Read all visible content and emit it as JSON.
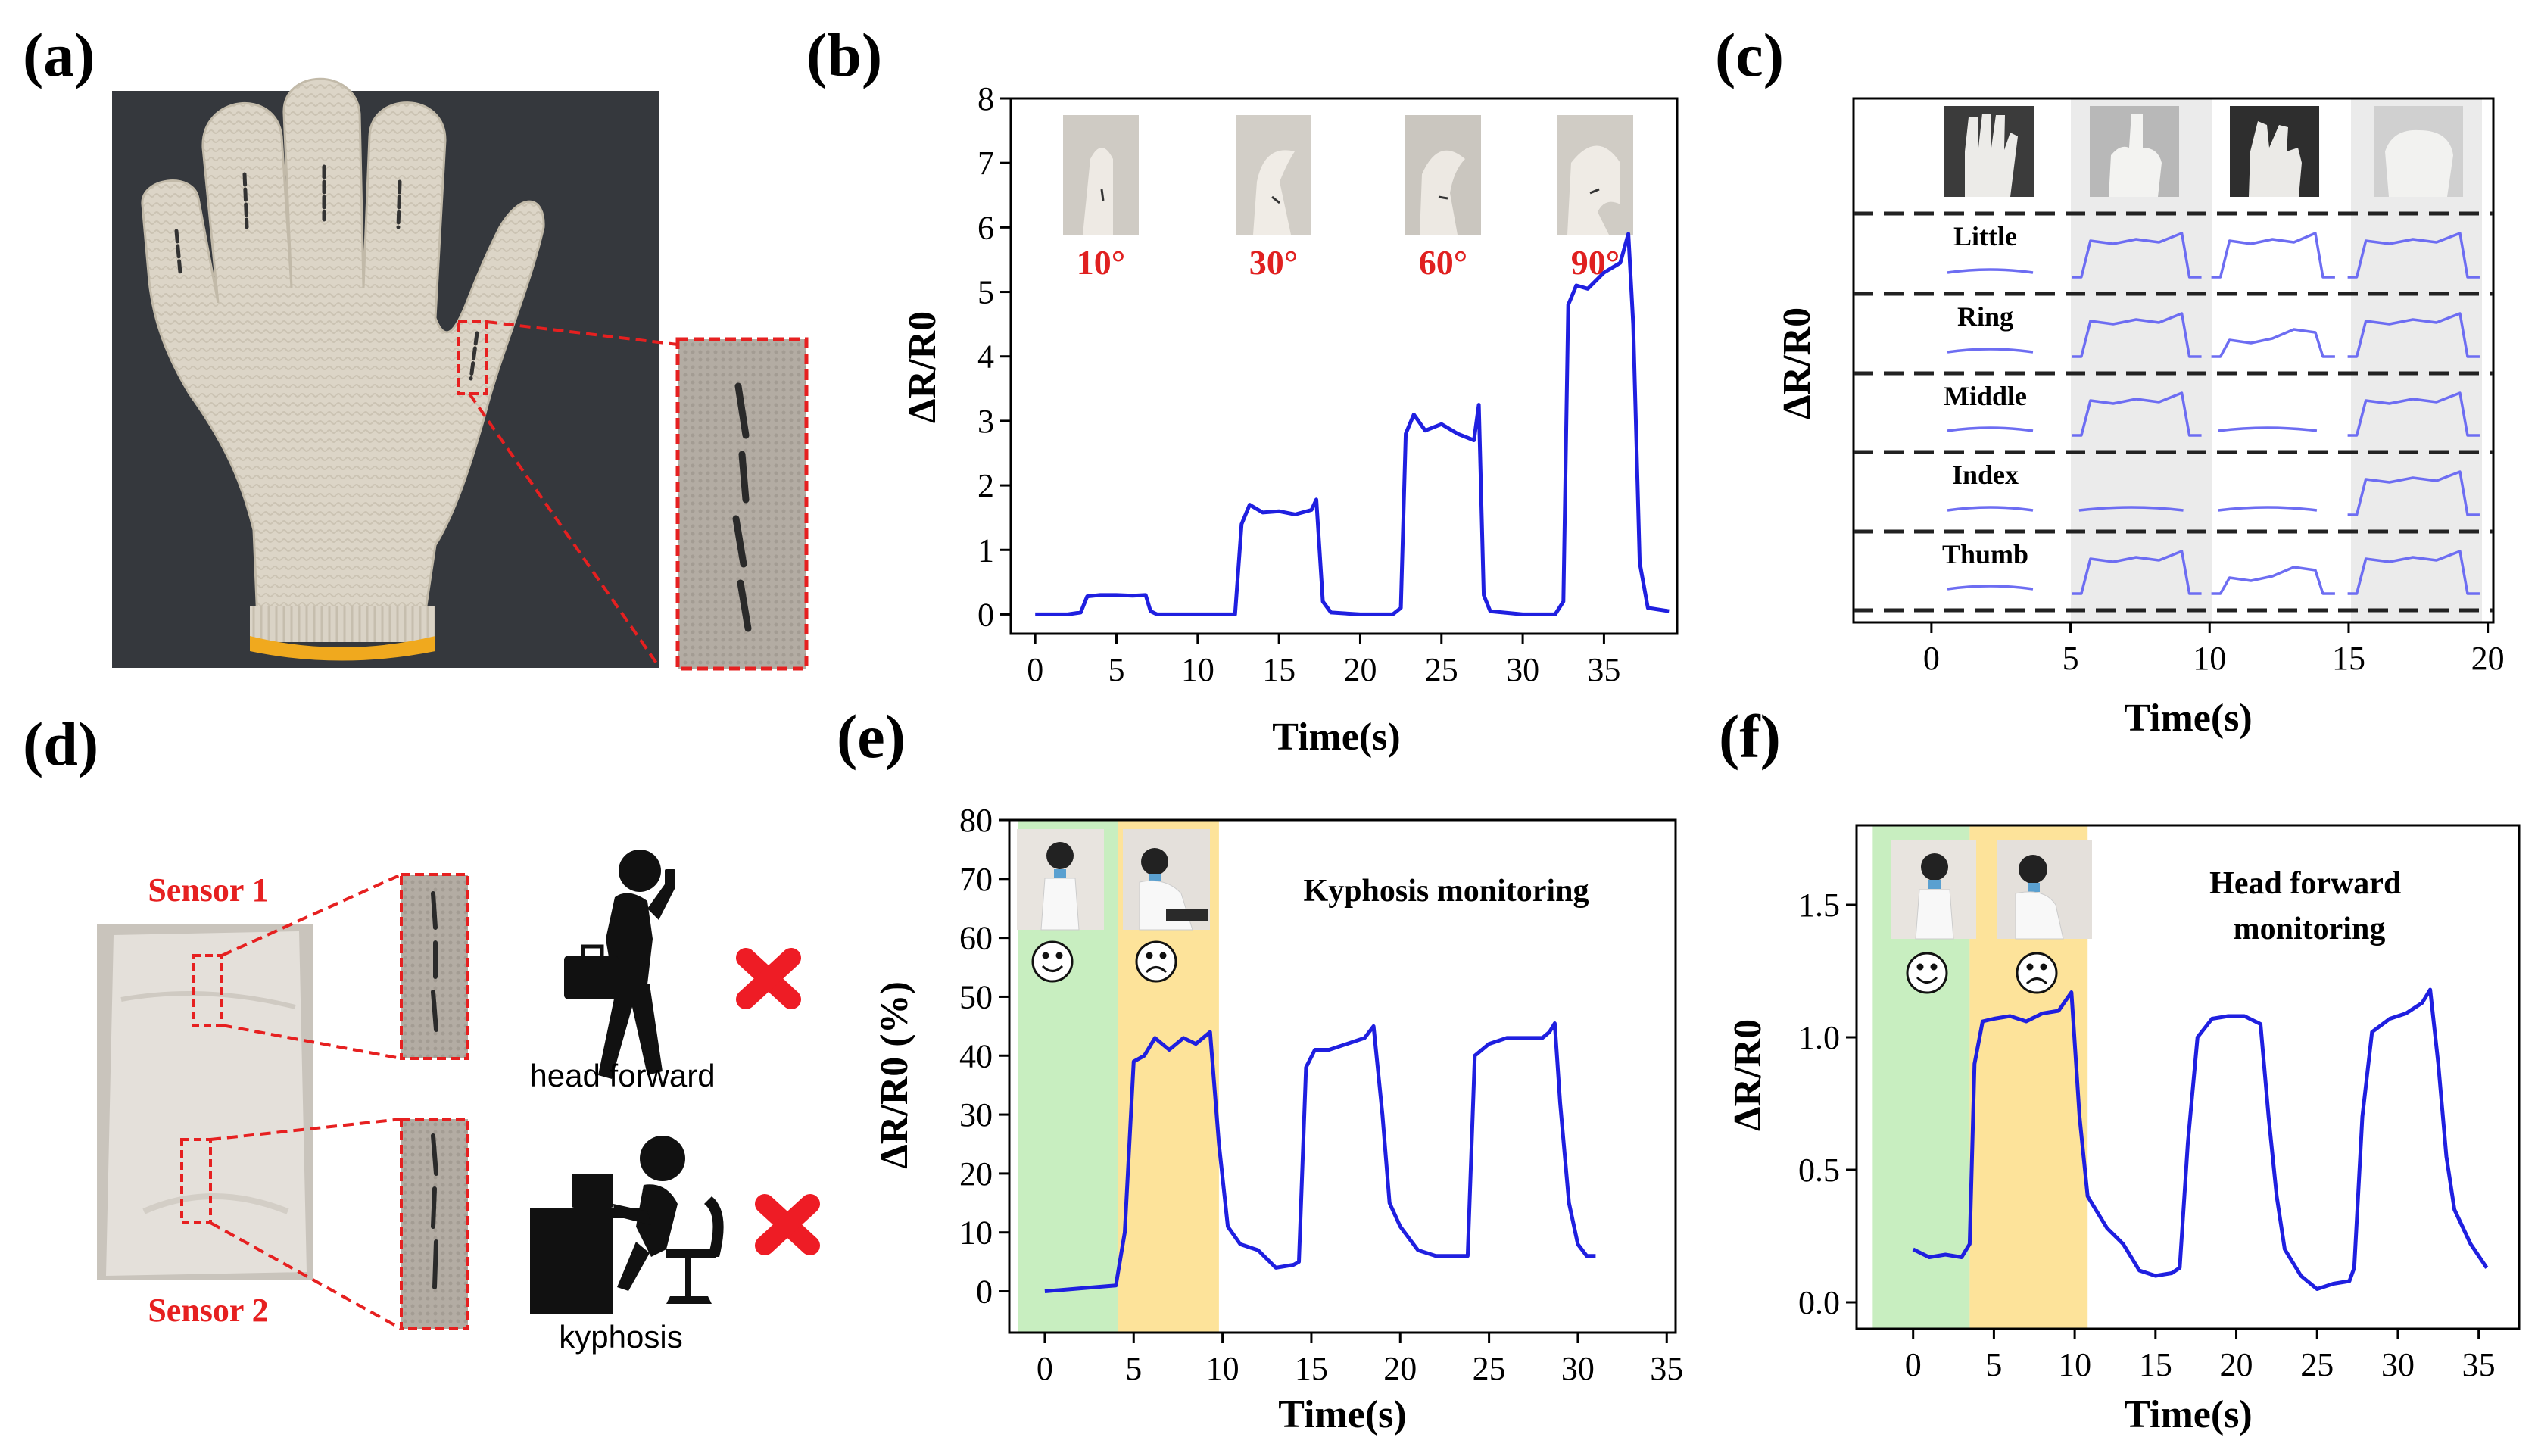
{
  "panels": {
    "a": {
      "label": "(a)"
    },
    "b": {
      "label": "(b)"
    },
    "c": {
      "label": "(c)"
    },
    "d": {
      "label": "(d)",
      "sensor1": "Sensor 1",
      "sensor2": "Sensor 2",
      "posture1": "head forward",
      "posture2": "kyphosis"
    },
    "e": {
      "label": "(e)"
    },
    "f": {
      "label": "(f)"
    }
  },
  "colors": {
    "curve": "#1f1fe0",
    "annot": "#e02020",
    "good": "#c8eec0",
    "bad": "#fde39a",
    "cross": "#ee1c25"
  },
  "chart_data": [
    {
      "id": "b",
      "type": "line",
      "xlabel": "Time(s)",
      "ylabel": "ΔR/R0",
      "xlim": [
        -1.5,
        39.5
      ],
      "ylim": [
        -0.3,
        8
      ],
      "xticks": [
        0,
        5,
        10,
        15,
        20,
        25,
        30,
        35
      ],
      "yticks": [
        0,
        1,
        2,
        3,
        4,
        5,
        6,
        7,
        8
      ],
      "annotations": [
        "10°",
        "30°",
        "60°",
        "90°"
      ],
      "points": [
        [
          0,
          0
        ],
        [
          1,
          0
        ],
        [
          2,
          0
        ],
        [
          2.8,
          0.03
        ],
        [
          3.2,
          0.28
        ],
        [
          4,
          0.3
        ],
        [
          5,
          0.3
        ],
        [
          6,
          0.29
        ],
        [
          6.8,
          0.3
        ],
        [
          7.1,
          0.05
        ],
        [
          7.5,
          0
        ],
        [
          9,
          0
        ],
        [
          11,
          0
        ],
        [
          12.3,
          0
        ],
        [
          12.7,
          1.4
        ],
        [
          13.2,
          1.7
        ],
        [
          14,
          1.58
        ],
        [
          15,
          1.6
        ],
        [
          16,
          1.55
        ],
        [
          17,
          1.62
        ],
        [
          17.3,
          1.78
        ],
        [
          17.7,
          0.2
        ],
        [
          18.2,
          0.03
        ],
        [
          20,
          0
        ],
        [
          22,
          0
        ],
        [
          22.5,
          0.1
        ],
        [
          22.8,
          2.8
        ],
        [
          23.3,
          3.1
        ],
        [
          24,
          2.85
        ],
        [
          25,
          2.95
        ],
        [
          26,
          2.8
        ],
        [
          27,
          2.7
        ],
        [
          27.3,
          3.25
        ],
        [
          27.6,
          0.3
        ],
        [
          28,
          0.05
        ],
        [
          30,
          0
        ],
        [
          32,
          0
        ],
        [
          32.5,
          0.2
        ],
        [
          32.8,
          4.8
        ],
        [
          33.3,
          5.1
        ],
        [
          34,
          5.05
        ],
        [
          35,
          5.3
        ],
        [
          36,
          5.45
        ],
        [
          36.5,
          5.9
        ],
        [
          36.8,
          4.5
        ],
        [
          37.2,
          0.8
        ],
        [
          37.7,
          0.1
        ],
        [
          39,
          0.05
        ]
      ]
    },
    {
      "id": "c",
      "type": "line",
      "xlabel": "Time(s)",
      "ylabel": "ΔR/R0",
      "xlim": [
        -2.8,
        20.2
      ],
      "xticks": [
        0,
        5,
        10,
        15,
        20
      ],
      "channels": [
        "Little",
        "Ring",
        "Middle",
        "Index",
        "Thumb"
      ],
      "segments": [
        {
          "t": [
            -1.6,
            4.6
          ],
          "states": [
            "low",
            "low",
            "low",
            "low",
            "low"
          ]
        },
        {
          "t": [
            4.9,
            9.6
          ],
          "states": [
            "high",
            "high",
            "high",
            "low",
            "high"
          ]
        },
        {
          "t": [
            9.9,
            14.4
          ],
          "states": [
            "high",
            "mid",
            "low",
            "low",
            "mid"
          ]
        },
        {
          "t": [
            14.8,
            19.6
          ],
          "states": [
            "high",
            "high",
            "high",
            "high",
            "high"
          ]
        }
      ]
    },
    {
      "id": "e",
      "type": "line",
      "title": "Kyphosis monitoring",
      "xlabel": "Time(s)",
      "ylabel": "ΔR/R0 (%)",
      "xlim": [
        -2,
        35.5
      ],
      "ylim": [
        -7,
        80
      ],
      "xticks": [
        0,
        5,
        10,
        15,
        20,
        25,
        30,
        35
      ],
      "yticks": [
        0,
        10,
        20,
        30,
        40,
        50,
        60,
        70,
        80
      ],
      "regions": [
        {
          "from": -1.5,
          "to": 4.1,
          "state": "good"
        },
        {
          "from": 4.1,
          "to": 9.8,
          "state": "bad"
        }
      ],
      "points": [
        [
          0,
          0
        ],
        [
          2,
          0.5
        ],
        [
          4,
          1
        ],
        [
          4.5,
          10
        ],
        [
          5,
          39
        ],
        [
          5.6,
          40
        ],
        [
          6.2,
          43
        ],
        [
          7,
          41
        ],
        [
          7.8,
          43
        ],
        [
          8.5,
          42
        ],
        [
          9.3,
          44
        ],
        [
          9.8,
          25
        ],
        [
          10.3,
          11
        ],
        [
          11,
          8
        ],
        [
          12,
          7
        ],
        [
          13,
          4
        ],
        [
          14,
          4.5
        ],
        [
          14.3,
          5
        ],
        [
          14.7,
          38
        ],
        [
          15.2,
          41
        ],
        [
          16,
          41
        ],
        [
          17,
          42
        ],
        [
          18,
          43
        ],
        [
          18.5,
          45
        ],
        [
          19,
          30
        ],
        [
          19.4,
          15
        ],
        [
          20,
          11
        ],
        [
          21,
          7
        ],
        [
          22,
          6
        ],
        [
          23,
          6
        ],
        [
          23.8,
          6
        ],
        [
          24.2,
          40
        ],
        [
          25,
          42
        ],
        [
          26,
          43
        ],
        [
          27,
          43
        ],
        [
          28,
          43
        ],
        [
          28.4,
          44
        ],
        [
          28.7,
          45.5
        ],
        [
          29,
          32
        ],
        [
          29.5,
          15
        ],
        [
          30,
          8
        ],
        [
          30.5,
          6
        ],
        [
          31,
          6
        ]
      ]
    },
    {
      "id": "f",
      "type": "line",
      "title": "Head forward monitoring",
      "xlabel": "Time(s)",
      "ylabel": "ΔR/R0",
      "xlim": [
        -3.5,
        37.5
      ],
      "ylim": [
        -0.1,
        1.8
      ],
      "xticks": [
        0,
        5,
        10,
        15,
        20,
        25,
        30,
        35
      ],
      "yticks": [
        0.0,
        0.5,
        1.0,
        1.5
      ],
      "regions": [
        {
          "from": -2.5,
          "to": 3.5,
          "state": "good"
        },
        {
          "from": 3.5,
          "to": 10.8,
          "state": "bad"
        }
      ],
      "points": [
        [
          0,
          0.2
        ],
        [
          1,
          0.17
        ],
        [
          2,
          0.18
        ],
        [
          3,
          0.17
        ],
        [
          3.5,
          0.22
        ],
        [
          3.8,
          0.9
        ],
        [
          4.3,
          1.06
        ],
        [
          5,
          1.07
        ],
        [
          6,
          1.08
        ],
        [
          7,
          1.06
        ],
        [
          8,
          1.09
        ],
        [
          9,
          1.1
        ],
        [
          9.8,
          1.17
        ],
        [
          10.3,
          0.7
        ],
        [
          10.8,
          0.4
        ],
        [
          11.5,
          0.33
        ],
        [
          12,
          0.28
        ],
        [
          13,
          0.22
        ],
        [
          14,
          0.12
        ],
        [
          15,
          0.1
        ],
        [
          16,
          0.11
        ],
        [
          16.5,
          0.13
        ],
        [
          17,
          0.6
        ],
        [
          17.6,
          1.0
        ],
        [
          18.5,
          1.07
        ],
        [
          19.5,
          1.08
        ],
        [
          20.5,
          1.08
        ],
        [
          21.5,
          1.05
        ],
        [
          22,
          0.7
        ],
        [
          22.5,
          0.4
        ],
        [
          23,
          0.2
        ],
        [
          24,
          0.1
        ],
        [
          25,
          0.05
        ],
        [
          26,
          0.07
        ],
        [
          27,
          0.08
        ],
        [
          27.3,
          0.13
        ],
        [
          27.8,
          0.7
        ],
        [
          28.4,
          1.02
        ],
        [
          29.5,
          1.07
        ],
        [
          30.5,
          1.09
        ],
        [
          31.5,
          1.13
        ],
        [
          32,
          1.18
        ],
        [
          32.5,
          0.9
        ],
        [
          33,
          0.55
        ],
        [
          33.5,
          0.35
        ],
        [
          34.5,
          0.22
        ],
        [
          35.5,
          0.13
        ]
      ]
    }
  ]
}
